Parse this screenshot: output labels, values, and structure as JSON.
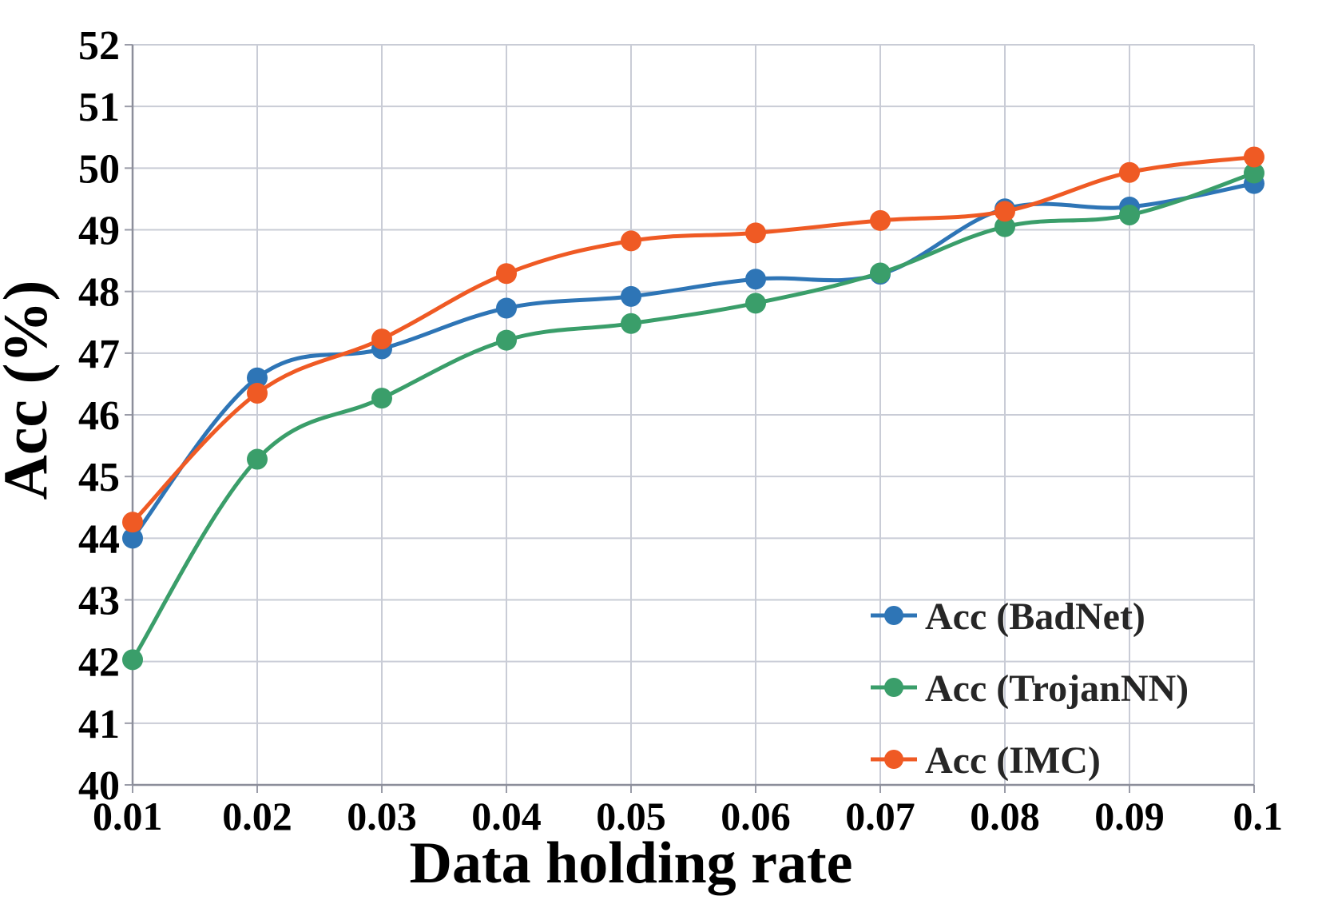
{
  "chart_data": {
    "type": "line",
    "title": "",
    "xlabel": "Data holding rate",
    "ylabel": "Acc (%)",
    "x": [
      0.01,
      0.02,
      0.03,
      0.04,
      0.05,
      0.06,
      0.07,
      0.08,
      0.09,
      0.1
    ],
    "x_tick_labels": [
      "0.01",
      "0.02",
      "0.03",
      "0.04",
      "0.05",
      "0.06",
      "0.07",
      "0.08",
      "0.09",
      "0.1"
    ],
    "ylim": [
      40,
      52
    ],
    "y_ticks": [
      40,
      41,
      42,
      43,
      44,
      45,
      46,
      47,
      48,
      49,
      50,
      51,
      52
    ],
    "grid": true,
    "smooth": true,
    "legend_position": "bottom-right",
    "series": [
      {
        "name": "Acc (BadNet)",
        "color": "#2e75b6",
        "values": [
          44.0,
          46.6,
          47.07,
          47.73,
          47.92,
          48.2,
          48.28,
          49.34,
          49.37,
          49.75
        ]
      },
      {
        "name": "Acc (TrojanNN)",
        "color": "#3a9e6a",
        "values": [
          42.03,
          45.28,
          46.27,
          47.21,
          47.48,
          47.81,
          48.3,
          49.05,
          49.24,
          49.92
        ]
      },
      {
        "name": "Acc (IMC)",
        "color": "#ef5a24",
        "values": [
          44.26,
          46.35,
          47.23,
          48.29,
          48.82,
          48.95,
          49.15,
          49.3,
          49.93,
          50.18
        ]
      }
    ]
  }
}
